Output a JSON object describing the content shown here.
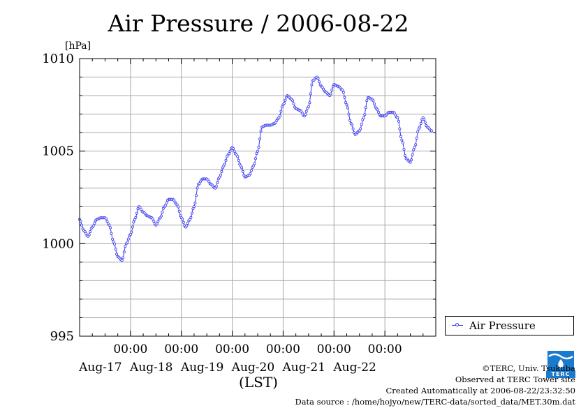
{
  "chart_data": {
    "type": "line",
    "title": "Air Pressure / 2006-08-22",
    "ylabel": "[hPa]",
    "xlabel": "(LST)",
    "ylim": [
      995,
      1010
    ],
    "yticks": [
      995,
      1000,
      1005,
      1010
    ],
    "xlim": [
      "2006-08-16 00:00",
      "2006-08-22 24:00"
    ],
    "xticks": [
      {
        "time": "00:00",
        "date": "Aug-17"
      },
      {
        "time": "00:00",
        "date": "Aug-18"
      },
      {
        "time": "00:00",
        "date": "Aug-19"
      },
      {
        "time": "00:00",
        "date": "Aug-20"
      },
      {
        "time": "00:00",
        "date": "Aug-21"
      },
      {
        "time": "00:00",
        "date": "Aug-22"
      }
    ],
    "grid": true,
    "legend_position": "right",
    "series": [
      {
        "name": "Air Pressure",
        "color": "#3a3af0",
        "marker": "open-circle",
        "points": [
          [
            "2006-08-16 00:00",
            1001.3
          ],
          [
            "2006-08-16 02:00",
            1000.7
          ],
          [
            "2006-08-16 04:00",
            1000.4
          ],
          [
            "2006-08-16 06:00",
            1000.9
          ],
          [
            "2006-08-16 08:00",
            1001.3
          ],
          [
            "2006-08-16 10:00",
            1001.4
          ],
          [
            "2006-08-16 12:00",
            1001.4
          ],
          [
            "2006-08-16 14:00",
            1001.0
          ],
          [
            "2006-08-16 16:00",
            1000.1
          ],
          [
            "2006-08-16 18:00",
            999.3
          ],
          [
            "2006-08-16 20:00",
            999.1
          ],
          [
            "2006-08-16 22:00",
            1000.0
          ],
          [
            "2006-08-17 00:00",
            1000.5
          ],
          [
            "2006-08-17 02:00",
            1001.3
          ],
          [
            "2006-08-17 04:00",
            1002.0
          ],
          [
            "2006-08-17 06:00",
            1001.7
          ],
          [
            "2006-08-17 08:00",
            1001.5
          ],
          [
            "2006-08-17 10:00",
            1001.4
          ],
          [
            "2006-08-17 12:00",
            1001.0
          ],
          [
            "2006-08-17 14:00",
            1001.4
          ],
          [
            "2006-08-17 16:00",
            1002.0
          ],
          [
            "2006-08-17 18:00",
            1002.4
          ],
          [
            "2006-08-17 20:00",
            1002.4
          ],
          [
            "2006-08-17 22:00",
            1002.1
          ],
          [
            "2006-08-18 00:00",
            1001.4
          ],
          [
            "2006-08-18 02:00",
            1000.9
          ],
          [
            "2006-08-18 04:00",
            1001.3
          ],
          [
            "2006-08-18 06:00",
            1002.0
          ],
          [
            "2006-08-18 08:00",
            1003.2
          ],
          [
            "2006-08-18 10:00",
            1003.5
          ],
          [
            "2006-08-18 12:00",
            1003.5
          ],
          [
            "2006-08-18 14:00",
            1003.2
          ],
          [
            "2006-08-18 16:00",
            1003.0
          ],
          [
            "2006-08-18 18:00",
            1003.6
          ],
          [
            "2006-08-18 20:00",
            1004.2
          ],
          [
            "2006-08-18 22:00",
            1004.8
          ],
          [
            "2006-08-19 00:00",
            1005.2
          ],
          [
            "2006-08-19 02:00",
            1004.8
          ],
          [
            "2006-08-19 04:00",
            1004.2
          ],
          [
            "2006-08-19 06:00",
            1003.6
          ],
          [
            "2006-08-19 08:00",
            1003.7
          ],
          [
            "2006-08-19 10:00",
            1004.2
          ],
          [
            "2006-08-19 12:00",
            1005.0
          ],
          [
            "2006-08-19 14:00",
            1006.3
          ],
          [
            "2006-08-19 16:00",
            1006.4
          ],
          [
            "2006-08-19 18:00",
            1006.4
          ],
          [
            "2006-08-19 20:00",
            1006.5
          ],
          [
            "2006-08-19 22:00",
            1006.8
          ],
          [
            "2006-08-20 00:00",
            1007.5
          ],
          [
            "2006-08-20 02:00",
            1008.0
          ],
          [
            "2006-08-20 04:00",
            1007.8
          ],
          [
            "2006-08-20 06:00",
            1007.3
          ],
          [
            "2006-08-20 08:00",
            1007.2
          ],
          [
            "2006-08-20 10:00",
            1006.9
          ],
          [
            "2006-08-20 12:00",
            1007.4
          ],
          [
            "2006-08-20 14:00",
            1008.8
          ],
          [
            "2006-08-20 16:00",
            1009.0
          ],
          [
            "2006-08-20 18:00",
            1008.5
          ],
          [
            "2006-08-20 20:00",
            1008.2
          ],
          [
            "2006-08-20 22:00",
            1008.0
          ],
          [
            "2006-08-21 00:00",
            1008.6
          ],
          [
            "2006-08-21 02:00",
            1008.5
          ],
          [
            "2006-08-21 04:00",
            1008.3
          ],
          [
            "2006-08-21 06:00",
            1007.5
          ],
          [
            "2006-08-21 08:00",
            1006.5
          ],
          [
            "2006-08-21 10:00",
            1005.9
          ],
          [
            "2006-08-21 12:00",
            1006.1
          ],
          [
            "2006-08-21 14:00",
            1006.8
          ],
          [
            "2006-08-21 16:00",
            1007.9
          ],
          [
            "2006-08-21 18:00",
            1007.8
          ],
          [
            "2006-08-21 20:00",
            1007.3
          ],
          [
            "2006-08-21 22:00",
            1006.9
          ],
          [
            "2006-08-22 00:00",
            1006.9
          ],
          [
            "2006-08-22 02:00",
            1007.1
          ],
          [
            "2006-08-22 04:00",
            1007.1
          ],
          [
            "2006-08-22 06:00",
            1006.8
          ],
          [
            "2006-08-22 08:00",
            1005.6
          ],
          [
            "2006-08-22 10:00",
            1004.6
          ],
          [
            "2006-08-22 12:00",
            1004.4
          ],
          [
            "2006-08-22 14:00",
            1005.2
          ],
          [
            "2006-08-22 16:00",
            1006.2
          ],
          [
            "2006-08-22 18:00",
            1006.8
          ],
          [
            "2006-08-22 20:00",
            1006.3
          ],
          [
            "2006-08-22 22:00",
            1006.1
          ]
        ]
      }
    ]
  },
  "credits": {
    "copyright": "©TERC, Univ. Tsukuba",
    "site": "Observed at TERC Tower site",
    "created": "Created Automatically at 2006-08-22/23:32:50",
    "source": "Data source : /home/hojyo/new/TERC-data/sorted_data/MET.30m.dat"
  },
  "logo": {
    "text": "TERC",
    "color": "#1a7acc"
  }
}
